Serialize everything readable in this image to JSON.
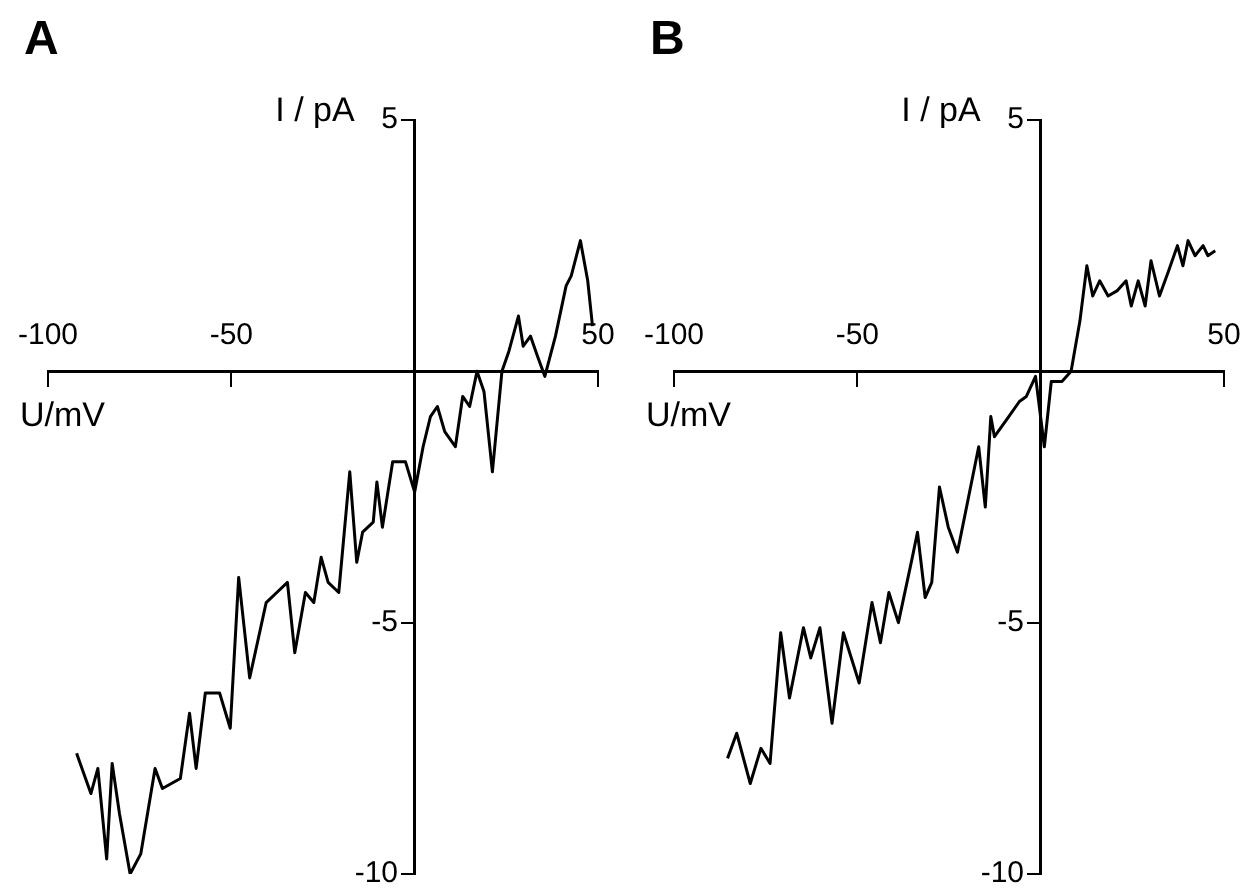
{
  "chart_data": [
    {
      "type": "line",
      "title": "A",
      "xlabel": "U/mV",
      "ylabel": "I / pA",
      "color": "#000000",
      "marker": "none",
      "line_style": "solid",
      "xlim": [
        -100,
        50
      ],
      "ylim": [
        -10,
        5
      ],
      "xticks": [
        -100,
        -50,
        50
      ],
      "yticks": [
        5,
        -5,
        -10
      ],
      "x": [
        -92.2,
        -88.3,
        -86.4,
        -84,
        -82.5,
        -80.5,
        -77.6,
        -74.7,
        -70.8,
        -68.8,
        -63.9,
        -61.4,
        -59.6,
        -57.1,
        -53.2,
        -50.3,
        -48,
        -45,
        -40.5,
        -37.6,
        -34.7,
        -32.7,
        -29.8,
        -27.5,
        -25.5,
        -23.6,
        -20.7,
        -17.7,
        -15.8,
        -14.2,
        -11.3,
        -10.3,
        -8.8,
        -6,
        -2.5,
        0,
        2.3,
        4.3,
        6.2,
        8.2,
        11.1,
        13.1,
        15,
        17,
        18.9,
        21.2,
        23.8,
        25.7,
        28.3,
        29.6,
        31.6,
        33.5,
        35.5,
        38.4,
        41.3,
        42.7,
        45.2,
        47.2,
        48.5
      ],
      "values": [
        -7.6,
        -8.4,
        -7.9,
        -9.7,
        -7.8,
        -8.8,
        -10,
        -9.6,
        -7.9,
        -8.3,
        -8.1,
        -6.8,
        -7.9,
        -6.4,
        -6.4,
        -7.1,
        -4.1,
        -6.1,
        -4.6,
        -4.4,
        -4.2,
        -5.6,
        -4.4,
        -4.6,
        -3.7,
        -4.2,
        -4.4,
        -2,
        -3.8,
        -3.2,
        -3,
        -2.2,
        -3.1,
        -1.8,
        -1.8,
        -2.4,
        -1.5,
        -0.9,
        -0.7,
        -1.2,
        -1.5,
        -0.5,
        -0.7,
        0,
        -0.4,
        -2,
        0,
        0.4,
        1.1,
        0.5,
        0.7,
        0.3,
        -0.1,
        0.7,
        1.7,
        1.9,
        2.6,
        1.8,
        0.9
      ]
    },
    {
      "type": "line",
      "title": "B",
      "xlabel": "U/mV",
      "ylabel": "I / pA",
      "color": "#000000",
      "marker": "none",
      "line_style": "solid",
      "xlim": [
        -100,
        50
      ],
      "ylim": [
        -10,
        5
      ],
      "xticks": [
        -100,
        -50,
        50
      ],
      "yticks": [
        5,
        -5,
        -10
      ],
      "x": [
        -85.4,
        -82.9,
        -79.2,
        -76.3,
        -73.8,
        -70.9,
        -68.5,
        -64.7,
        -62.7,
        -60.2,
        -56.9,
        -53.8,
        -49.5,
        -46,
        -43.7,
        -41.4,
        -38.8,
        -35,
        -33.6,
        -31.5,
        -29.7,
        -27.6,
        -25.2,
        -22.7,
        -16.9,
        -15.1,
        -13.6,
        -12.6,
        -8.7,
        -5.8,
        -3.9,
        -1.4,
        1,
        2.9,
        5.8,
        8.3,
        10.7,
        12.6,
        14.2,
        16.1,
        18.4,
        20.8,
        23.3,
        24.7,
        26.6,
        28.5,
        30.1,
        32.4,
        34.9,
        37.3,
        38.8,
        40.2,
        42.1,
        44.3,
        45.6,
        47.6
      ],
      "values": [
        -7.7,
        -7.2,
        -8.2,
        -7.5,
        -7.8,
        -5.2,
        -6.5,
        -5.1,
        -5.7,
        -5.1,
        -7,
        -5.2,
        -6.2,
        -4.6,
        -5.4,
        -4.4,
        -5,
        -3.7,
        -3.2,
        -4.5,
        -4.2,
        -2.3,
        -3.1,
        -3.6,
        -1.5,
        -2.7,
        -0.9,
        -1.3,
        -0.9,
        -0.6,
        -0.5,
        -0.1,
        -1.5,
        -0.2,
        -0.2,
        0,
        1,
        2.1,
        1.5,
        1.8,
        1.5,
        1.6,
        1.8,
        1.3,
        1.8,
        1.3,
        2.2,
        1.5,
        2,
        2.5,
        2.1,
        2.6,
        2.3,
        2.5,
        2.3,
        2.4
      ]
    }
  ]
}
